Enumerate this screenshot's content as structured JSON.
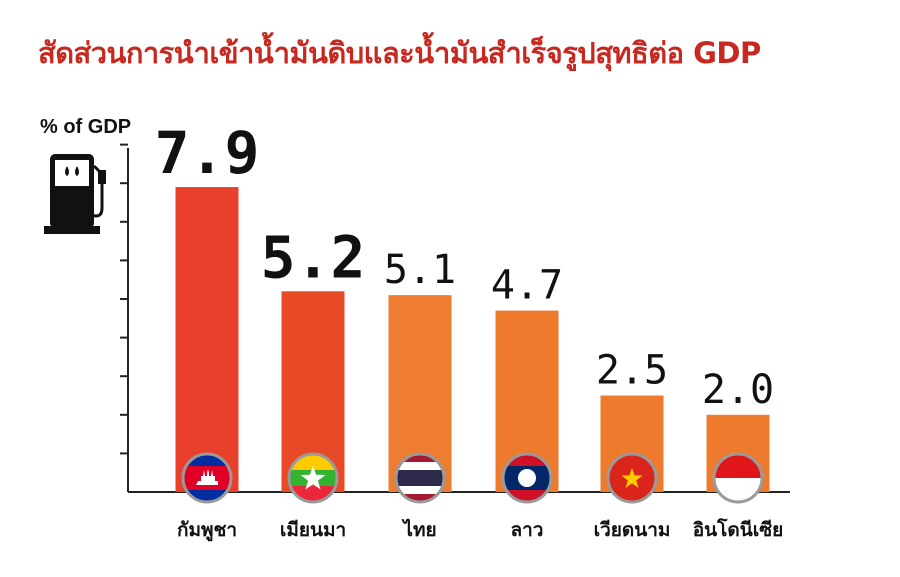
{
  "title": "สัดส่วนการนำเข้าน้ำมันดิบและน้ำมันสำเร็จรูปสุทธิต่อ GDP",
  "unit_label": "% of GDP",
  "icons": {
    "fuel_pump": "fuel-pump-icon"
  },
  "chart_data": {
    "type": "bar",
    "categories": [
      "กัมพูชา",
      "เมียนมา",
      "ไทย",
      "ลาว",
      "เวียดนาม",
      "อินโดนีเซีย"
    ],
    "values": [
      7.9,
      5.2,
      5.1,
      4.7,
      2.5,
      2.0
    ],
    "value_labels": [
      "7.9",
      "5.2",
      "5.1",
      "4.7",
      "2.5",
      "2.0"
    ],
    "flags": [
      "cambodia-flag-icon",
      "myanmar-flag-icon",
      "thailand-flag-icon",
      "laos-flag-icon",
      "vietnam-flag-icon",
      "indonesia-flag-icon"
    ],
    "colors": [
      "#e8402a",
      "#e84a28",
      "#ee7c31",
      "#ee7a2e",
      "#ee7a2e",
      "#ee7a2e"
    ],
    "ylim": [
      0,
      9
    ]
  }
}
